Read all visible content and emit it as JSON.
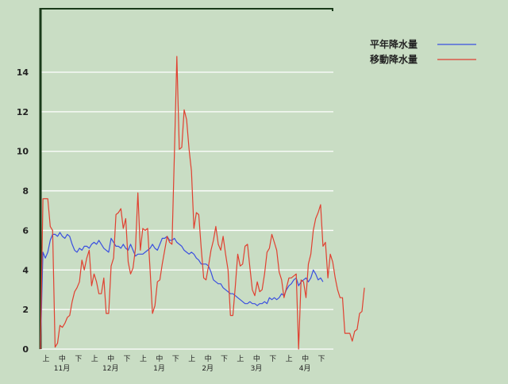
{
  "chart_data": {
    "type": "line",
    "title": "",
    "xlabel": "",
    "ylabel": "",
    "ylim": [
      0,
      16
    ],
    "yticks": [
      0,
      2,
      4,
      6,
      8,
      10,
      12,
      14
    ],
    "grid": true,
    "legend_position": "top-right",
    "period_labels": [
      "上",
      "中",
      "下",
      "上",
      "中",
      "下",
      "上",
      "中",
      "下",
      "上",
      "中",
      "下",
      "上",
      "中",
      "下",
      "上",
      "中",
      "下"
    ],
    "month_labels": [
      "11月",
      "12月",
      "1月",
      "2月",
      "3月",
      "4月"
    ],
    "points_per_period": 5,
    "series": [
      {
        "name": "平年降水量",
        "color": "#3a4fe0",
        "values": [
          0,
          4.9,
          4.6,
          4.9,
          5.5,
          5.8,
          5.8,
          5.7,
          5.9,
          5.7,
          5.6,
          5.8,
          5.7,
          5.3,
          5.0,
          4.9,
          5.1,
          5.0,
          5.2,
          5.2,
          5.1,
          5.3,
          5.4,
          5.3,
          5.5,
          5.3,
          5.1,
          5.0,
          4.9,
          5.6,
          5.4,
          5.2,
          5.2,
          5.1,
          5.3,
          5.1,
          5.0,
          5.3,
          5.0,
          4.7,
          4.8,
          4.8,
          4.8,
          4.9,
          5.0,
          5.1,
          5.3,
          5.1,
          5.0,
          5.3,
          5.6,
          5.6,
          5.7,
          5.5,
          5.5,
          5.6,
          5.4,
          5.3,
          5.2,
          5.0,
          4.9,
          4.8,
          4.9,
          4.8,
          4.6,
          4.5,
          4.3,
          4.3,
          4.3,
          4.2,
          3.9,
          3.5,
          3.4,
          3.3,
          3.3,
          3.1,
          3.0,
          2.9,
          2.8,
          2.8,
          2.7,
          2.6,
          2.5,
          2.4,
          2.3,
          2.3,
          2.4,
          2.3,
          2.3,
          2.2,
          2.3,
          2.3,
          2.4,
          2.3,
          2.6,
          2.5,
          2.6,
          2.5,
          2.6,
          2.8,
          2.7,
          3.0,
          3.2,
          3.3,
          3.5,
          3.6,
          3.2,
          3.4,
          3.5,
          3.6,
          3.4,
          3.6,
          4.0,
          3.8,
          3.5,
          3.6,
          3.4
        ],
        "visible_points": 117
      },
      {
        "name": "移動降水量",
        "color": "#e04030",
        "values": [
          0,
          7.6,
          7.6,
          7.6,
          6.2,
          6.0,
          0.1,
          0.3,
          1.2,
          1.1,
          1.3,
          1.6,
          1.7,
          2.4,
          2.9,
          3.1,
          3.4,
          4.5,
          4.0,
          4.6,
          5.0,
          3.2,
          3.8,
          3.4,
          2.8,
          2.8,
          3.6,
          1.8,
          1.8,
          4.2,
          4.6,
          6.8,
          6.9,
          7.1,
          6.1,
          6.6,
          4.4,
          3.8,
          4.1,
          5.1,
          7.9,
          5.0,
          6.1,
          6.0,
          6.1,
          4.0,
          1.8,
          2.2,
          3.4,
          3.5,
          4.3,
          5.0,
          5.7,
          5.4,
          5.3,
          10.0,
          14.8,
          10.1,
          10.2,
          12.1,
          11.6,
          10.1,
          9.0,
          6.1,
          6.9,
          6.8,
          5.1,
          3.6,
          3.5,
          4.2,
          5.0,
          5.5,
          6.2,
          5.3,
          5.0,
          5.7,
          4.8,
          4.0,
          1.7,
          1.7,
          3.2,
          4.8,
          4.2,
          4.3,
          5.2,
          5.3,
          4.1,
          3.0,
          2.7,
          3.4,
          2.9,
          3.0,
          3.8,
          4.9,
          5.1,
          5.8,
          5.4,
          5.0,
          3.9,
          3.5,
          2.6,
          3.1,
          3.6,
          3.6,
          3.7,
          3.8,
          0.0,
          3.5,
          3.4,
          2.6,
          4.3,
          4.8,
          6.0,
          6.6,
          6.9,
          7.3,
          5.2,
          5.4,
          3.6,
          4.8,
          4.4,
          3.6,
          3.0,
          2.6,
          2.6,
          0.8,
          0.8,
          0.8,
          0.4,
          0.9,
          1.0,
          1.8,
          1.9,
          3.1
        ],
        "visible_points": 134
      }
    ]
  }
}
